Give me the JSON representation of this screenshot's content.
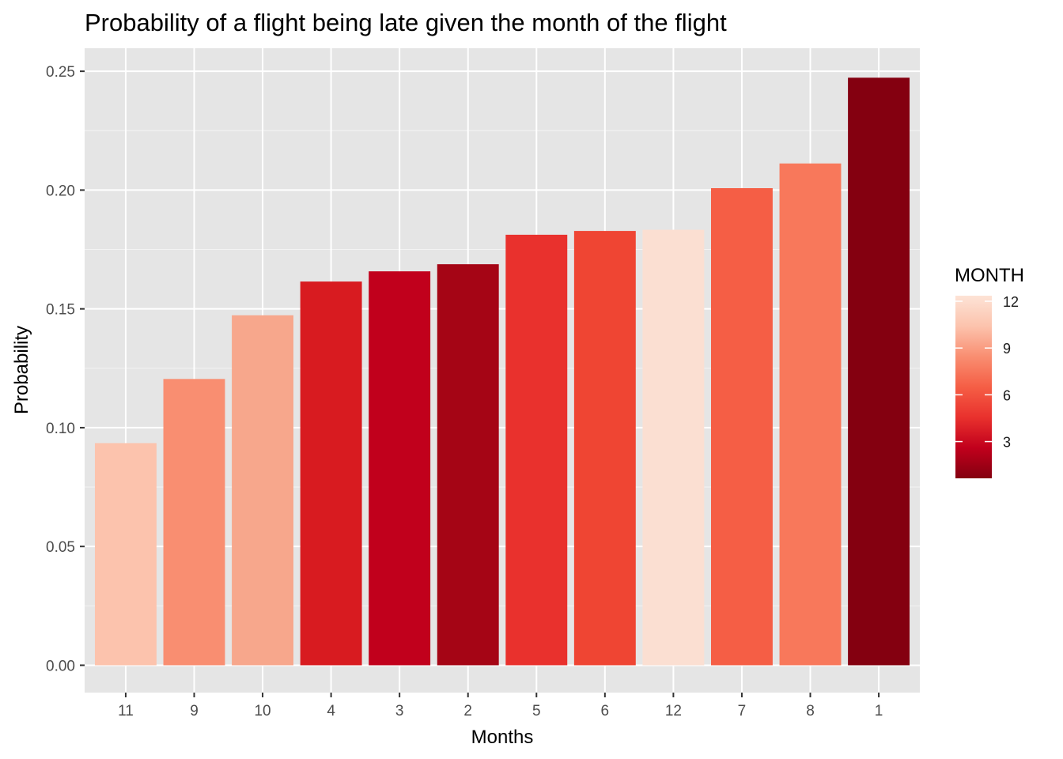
{
  "chart_data": {
    "type": "bar",
    "title": "Probability of a flight being late given the month of the flight",
    "xlabel": "Months",
    "ylabel": "Probability",
    "categories": [
      "11",
      "9",
      "10",
      "4",
      "3",
      "2",
      "5",
      "6",
      "12",
      "7",
      "8",
      "1"
    ],
    "values": [
      0.0935,
      0.1205,
      0.1473,
      0.1615,
      0.1658,
      0.1688,
      0.1812,
      0.1828,
      0.1833,
      0.2008,
      0.2112,
      0.2473
    ],
    "fill_values": [
      11,
      9,
      10,
      4,
      3,
      2,
      5,
      6,
      12,
      7,
      8,
      1
    ],
    "ylim": [
      -0.0115,
      0.2597
    ],
    "yticks": [
      0,
      0.05,
      0.1,
      0.15,
      0.2,
      0.25
    ],
    "ytick_labels": [
      "0.00",
      "0.05",
      "0.10",
      "0.15",
      "0.20",
      "0.25"
    ],
    "grid": true,
    "panel_background": "#e5e5e5",
    "grid_color": "#ffffff",
    "legend": {
      "title": "MONTH",
      "position": "right",
      "ticks": [
        3,
        6,
        9,
        12
      ],
      "tick_labels": [
        "3",
        "6",
        "9",
        "12"
      ],
      "range": [
        1,
        12
      ]
    },
    "colors": {
      "1": "#840010",
      "2": "#a50515",
      "3": "#c1001c",
      "4": "#d81b20",
      "5": "#e9312d",
      "6": "#ef4533",
      "7": "#f55e45",
      "8": "#f8785b",
      "9": "#f98e71",
      "10": "#f7a78c",
      "11": "#fcc3ad",
      "12": "#fbdfd2"
    },
    "gradient_stops": [
      "#840010",
      "#c1001c",
      "#e9312d",
      "#f55e45",
      "#f98e71",
      "#fcc3ad",
      "#fde3d6"
    ]
  }
}
